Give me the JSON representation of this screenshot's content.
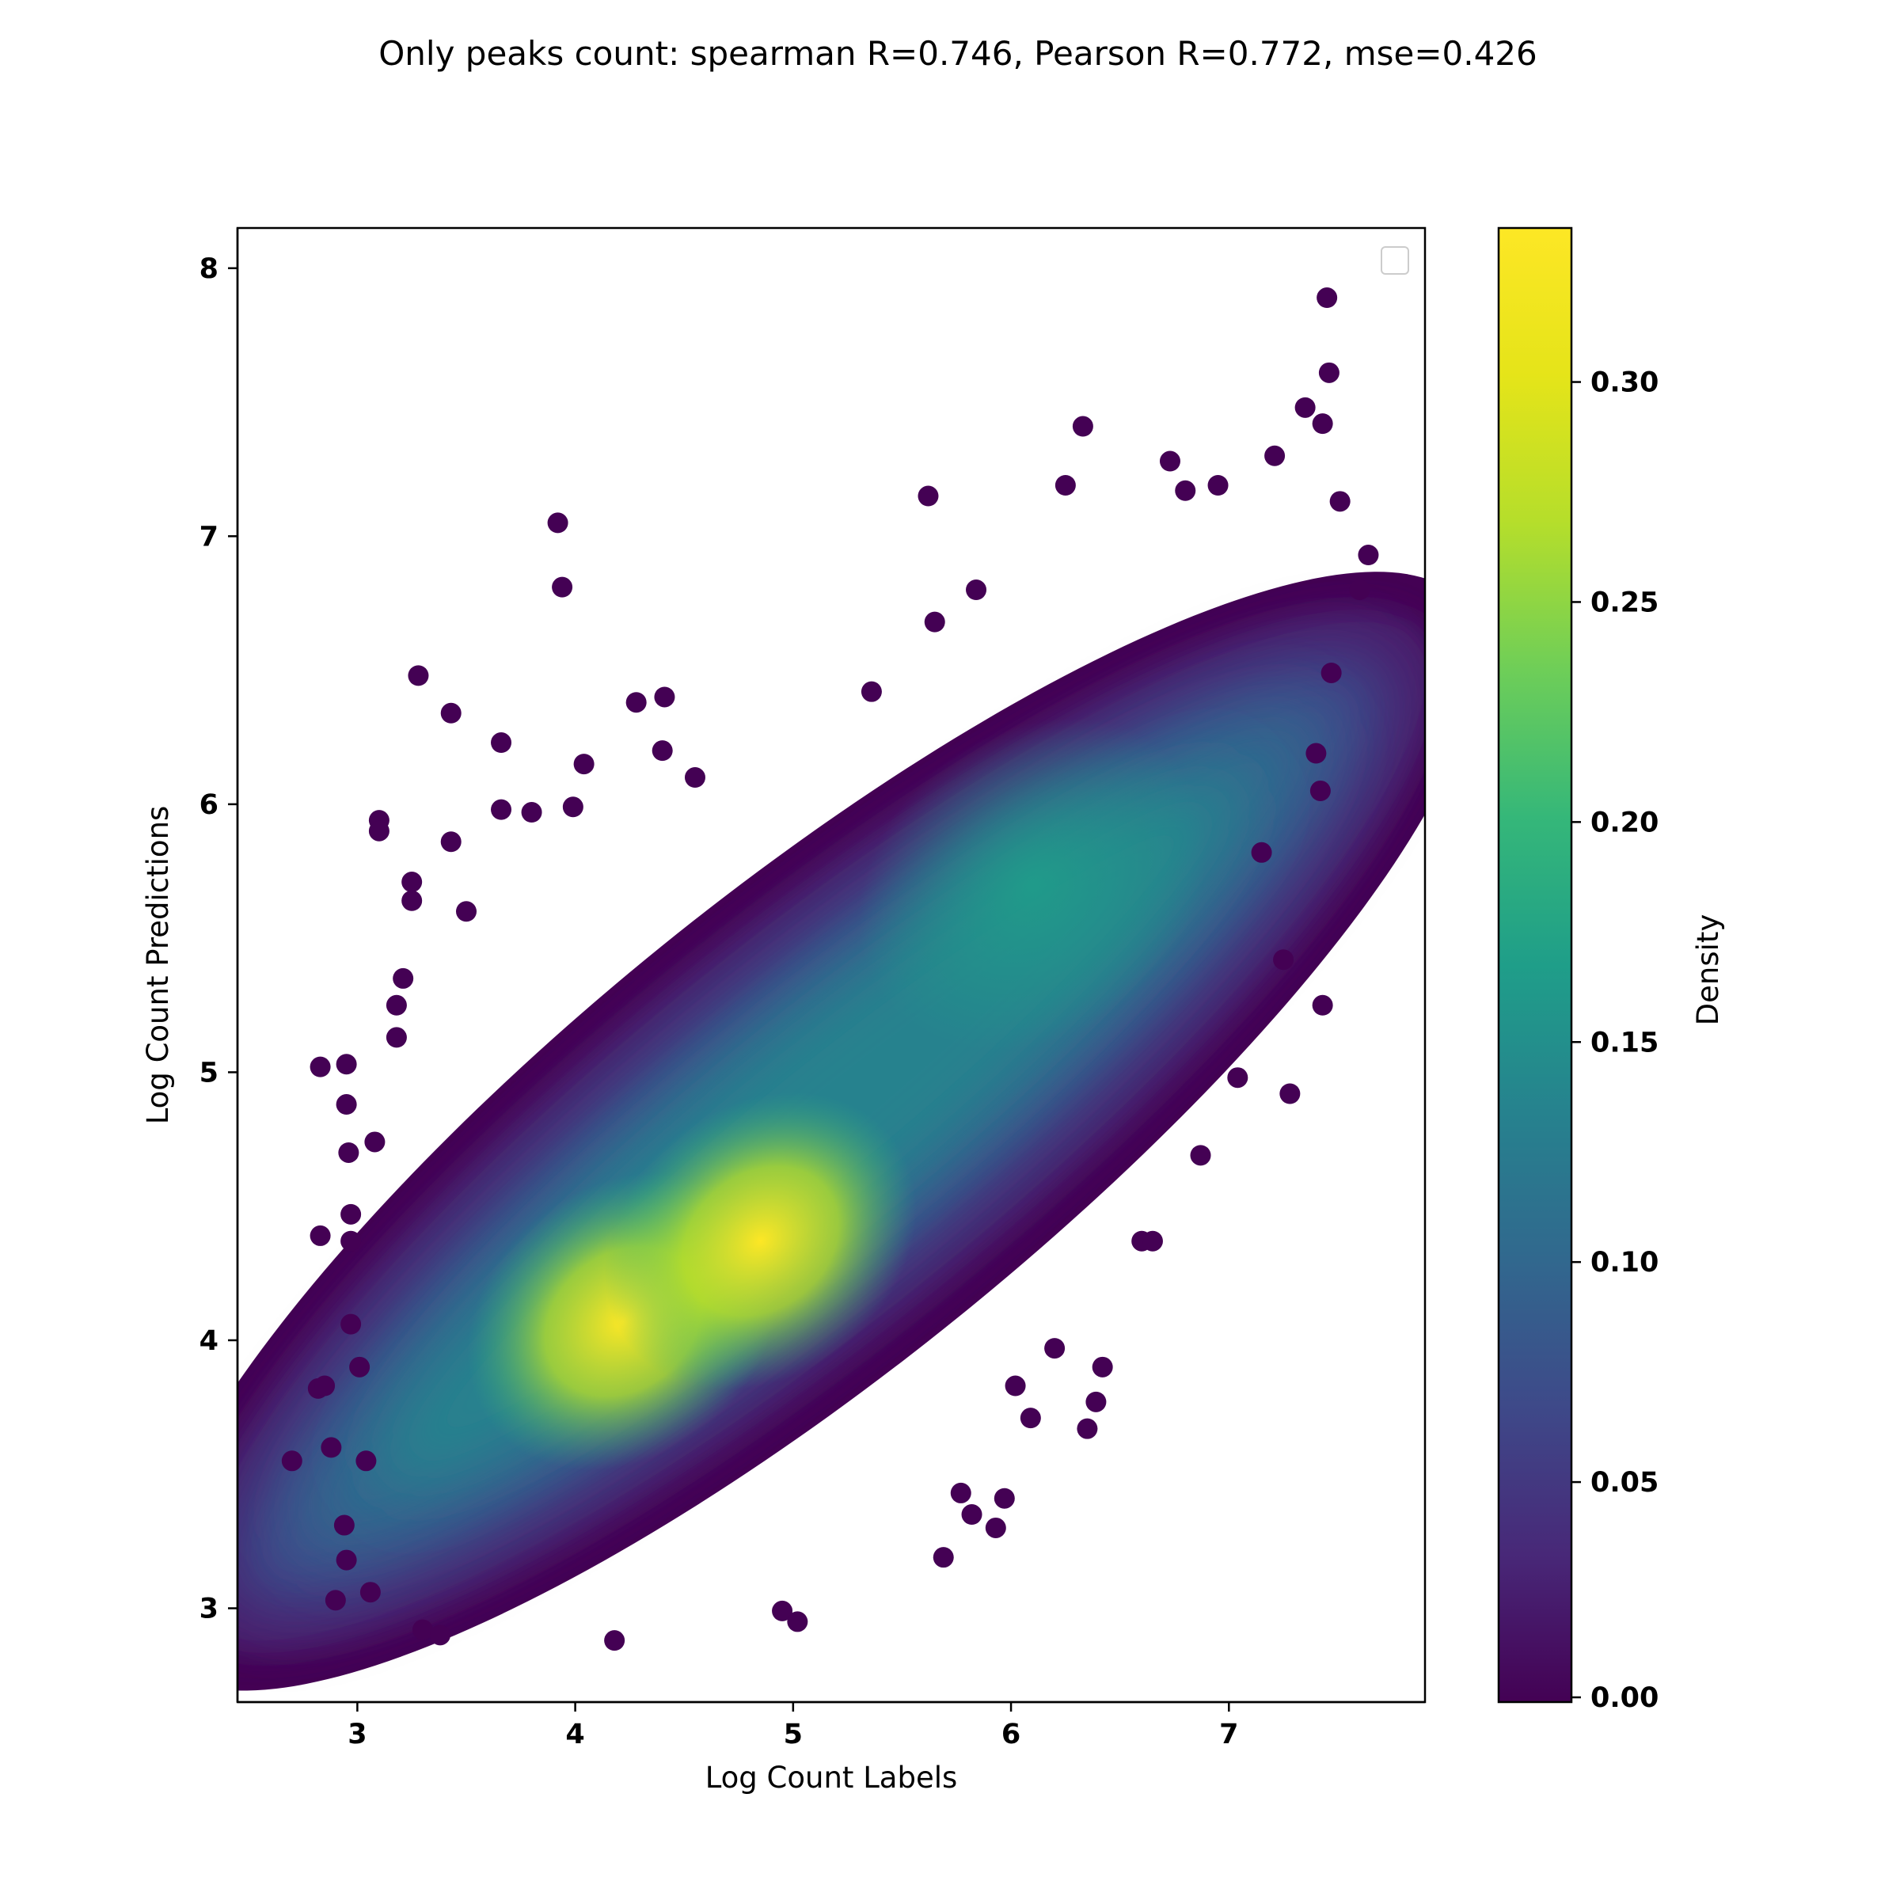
{
  "chart_data": {
    "type": "scatter",
    "title": "Only peaks count: spearman R=0.746, Pearson R=0.772, mse=0.426",
    "xlabel": "Log Count Labels",
    "ylabel": "Log Count Predictions",
    "xlim": [
      2.45,
      7.9
    ],
    "ylim": [
      2.65,
      8.15
    ],
    "x_ticks": [
      "3",
      "4",
      "5",
      "6",
      "7"
    ],
    "y_ticks": [
      "3",
      "4",
      "5",
      "6",
      "7",
      "8"
    ],
    "x_tick_values": [
      3,
      4,
      5,
      6,
      7
    ],
    "y_tick_values": [
      3,
      4,
      5,
      6,
      7,
      8
    ],
    "grid": false,
    "legend": {
      "placement": "upper-right",
      "entries": []
    },
    "colormap": "viridis",
    "colorbar": {
      "label": "Density",
      "range": [
        0.0,
        0.335
      ],
      "ticks": [
        "0.00",
        "0.05",
        "0.10",
        "0.15",
        "0.20",
        "0.25",
        "0.30"
      ],
      "tick_values": [
        0.0,
        0.05,
        0.1,
        0.15,
        0.2,
        0.25,
        0.3
      ]
    },
    "density_peaks": [
      {
        "x": 4.22,
        "y": 4.07,
        "density": 0.33
      },
      {
        "x": 4.85,
        "y": 4.37,
        "density": 0.32
      },
      {
        "x": 6.1,
        "y": 5.7,
        "density": 0.2
      }
    ],
    "points": [
      [
        2.7,
        3.55
      ],
      [
        2.82,
        3.82
      ],
      [
        2.85,
        3.83
      ],
      [
        2.88,
        3.6
      ],
      [
        2.9,
        3.03
      ],
      [
        2.94,
        3.31
      ],
      [
        2.95,
        3.18
      ],
      [
        2.96,
        4.7
      ],
      [
        2.97,
        4.47
      ],
      [
        2.95,
        4.88
      ],
      [
        2.95,
        5.03
      ],
      [
        2.83,
        5.02
      ],
      [
        2.83,
        4.39
      ],
      [
        2.97,
        4.37
      ],
      [
        2.97,
        4.06
      ],
      [
        3.01,
        3.9
      ],
      [
        3.04,
        3.55
      ],
      [
        3.06,
        3.06
      ],
      [
        3.08,
        4.74
      ],
      [
        3.1,
        5.94
      ],
      [
        3.1,
        5.9
      ],
      [
        3.18,
        5.25
      ],
      [
        3.18,
        5.13
      ],
      [
        3.21,
        5.35
      ],
      [
        3.25,
        5.71
      ],
      [
        3.25,
        5.64
      ],
      [
        3.28,
        6.48
      ],
      [
        3.3,
        2.92
      ],
      [
        3.38,
        2.9
      ],
      [
        3.43,
        6.34
      ],
      [
        3.43,
        5.86
      ],
      [
        3.5,
        5.6
      ],
      [
        3.66,
        6.23
      ],
      [
        3.66,
        5.98
      ],
      [
        3.8,
        5.97
      ],
      [
        3.92,
        7.05
      ],
      [
        3.94,
        6.81
      ],
      [
        3.99,
        5.99
      ],
      [
        4.04,
        6.15
      ],
      [
        4.18,
        2.88
      ],
      [
        4.28,
        6.38
      ],
      [
        4.41,
        6.4
      ],
      [
        4.4,
        6.2
      ],
      [
        4.55,
        6.1
      ],
      [
        4.95,
        2.99
      ],
      [
        5.02,
        2.95
      ],
      [
        5.36,
        6.42
      ],
      [
        5.62,
        7.15
      ],
      [
        5.65,
        6.68
      ],
      [
        5.77,
        3.43
      ],
      [
        5.82,
        3.35
      ],
      [
        5.93,
        3.3
      ],
      [
        5.97,
        3.41
      ],
      [
        5.84,
        6.8
      ],
      [
        5.69,
        3.19
      ],
      [
        6.02,
        3.83
      ],
      [
        6.09,
        3.71
      ],
      [
        6.2,
        3.97
      ],
      [
        6.25,
        7.19
      ],
      [
        6.33,
        7.41
      ],
      [
        6.35,
        3.67
      ],
      [
        6.39,
        3.77
      ],
      [
        6.42,
        3.9
      ],
      [
        6.6,
        4.37
      ],
      [
        6.65,
        4.37
      ],
      [
        6.73,
        7.28
      ],
      [
        6.8,
        7.17
      ],
      [
        6.87,
        4.69
      ],
      [
        6.95,
        7.19
      ],
      [
        7.04,
        4.98
      ],
      [
        7.15,
        5.82
      ],
      [
        7.21,
        7.3
      ],
      [
        7.25,
        5.42
      ],
      [
        7.28,
        4.92
      ],
      [
        7.35,
        7.48
      ],
      [
        7.43,
        5.25
      ],
      [
        7.43,
        7.42
      ],
      [
        7.45,
        7.89
      ],
      [
        7.46,
        7.61
      ],
      [
        7.51,
        7.13
      ],
      [
        7.47,
        6.49
      ],
      [
        7.6,
        6.8
      ],
      [
        7.64,
        6.93
      ],
      [
        7.42,
        6.05
      ],
      [
        7.4,
        6.19
      ]
    ]
  }
}
